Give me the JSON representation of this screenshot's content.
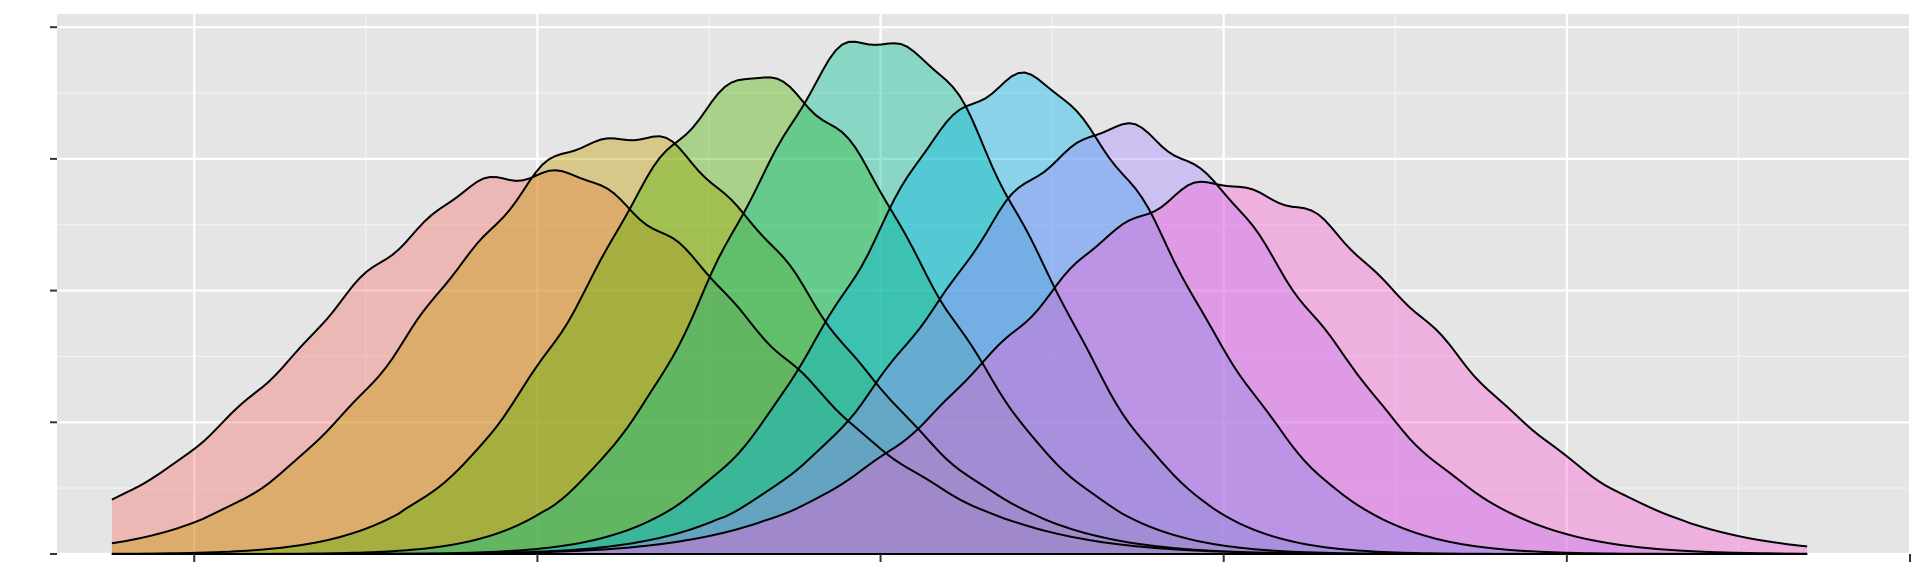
{
  "chart_data": {
    "type": "area",
    "title": "",
    "xlabel": "",
    "ylabel": "",
    "xlim": [
      -8.3,
      2.5
    ],
    "ylim": [
      0,
      0.205
    ],
    "x_ticks": [
      -7.5,
      -5.5,
      -3.5,
      -1.5,
      0.5,
      2.5
    ],
    "x_minor_gridlines": [
      -6.5,
      -4.5,
      -2.5,
      -0.5,
      1.5
    ],
    "y_ticks": [
      0,
      0.05,
      0.1,
      0.15,
      0.2
    ],
    "y_minor_gridlines": [
      0.025,
      0.075,
      0.125,
      0.175
    ],
    "tick_labels_visible": false,
    "grid": true,
    "legend": "none",
    "panel_background": "#e5e5e5",
    "outline_color": "#000000",
    "series": [
      {
        "mean": -5.5,
        "sd": 1.25,
        "peak": 0.145,
        "color": "#f8766d"
      },
      {
        "mean": -5.0,
        "sd": 1.1,
        "peak": 0.159,
        "color": "#c49a00"
      },
      {
        "mean": -4.2,
        "sd": 0.95,
        "peak": 0.18,
        "color": "#53b400"
      },
      {
        "mean": -3.5,
        "sd": 0.88,
        "peak": 0.196,
        "color": "#00c094"
      },
      {
        "mean": -2.7,
        "sd": 0.93,
        "peak": 0.18,
        "color": "#00b6eb"
      },
      {
        "mean": -2.1,
        "sd": 1.05,
        "peak": 0.161,
        "color": "#a58aff"
      },
      {
        "mean": -1.5,
        "sd": 1.22,
        "peak": 0.14,
        "color": "#fb61d7"
      }
    ]
  }
}
